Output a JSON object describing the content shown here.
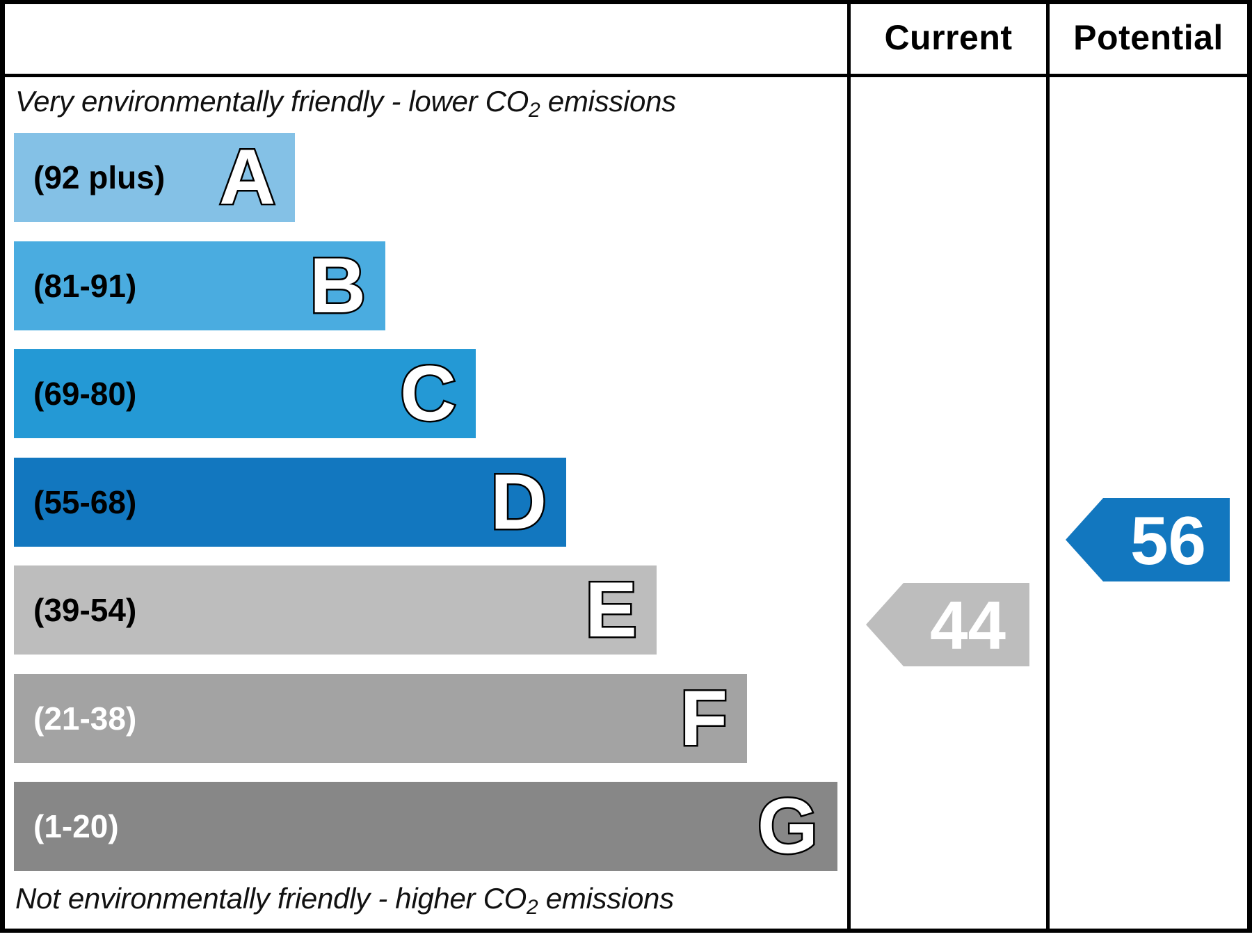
{
  "header": {
    "current_label": "Current",
    "potential_label": "Potential"
  },
  "captions": {
    "top_pre": "Very environmentally friendly - lower CO",
    "top_sub": "2",
    "top_post": " emissions",
    "bottom_pre": "Not environmentally friendly - higher CO",
    "bottom_sub": "2",
    "bottom_post": " emissions"
  },
  "chart_data": {
    "type": "bar",
    "bands": [
      {
        "letter": "A",
        "range": "(92 plus)",
        "min": 92,
        "max": 100,
        "color": "#84c1e6",
        "text_color": "#000000"
      },
      {
        "letter": "B",
        "range": "(81-91)",
        "min": 81,
        "max": 91,
        "color": "#4aace0",
        "text_color": "#000000"
      },
      {
        "letter": "C",
        "range": "(69-80)",
        "min": 69,
        "max": 80,
        "color": "#2499d5",
        "text_color": "#000000"
      },
      {
        "letter": "D",
        "range": "(55-68)",
        "min": 55,
        "max": 68,
        "color": "#1277bf",
        "text_color": "#000000"
      },
      {
        "letter": "E",
        "range": "(39-54)",
        "min": 39,
        "max": 54,
        "color": "#bdbdbd",
        "text_color": "#000000"
      },
      {
        "letter": "F",
        "range": "(21-38)",
        "min": 21,
        "max": 38,
        "color": "#a3a3a3",
        "text_color": "#ffffff"
      },
      {
        "letter": "G",
        "range": "(1-20)",
        "min": 1,
        "max": 20,
        "color": "#878787",
        "text_color": "#ffffff"
      }
    ],
    "current": {
      "value": 44,
      "label": "44",
      "band": "E",
      "color": "#bdbdbd"
    },
    "potential": {
      "value": 56,
      "label": "56",
      "band": "D",
      "color": "#1277bf"
    }
  }
}
